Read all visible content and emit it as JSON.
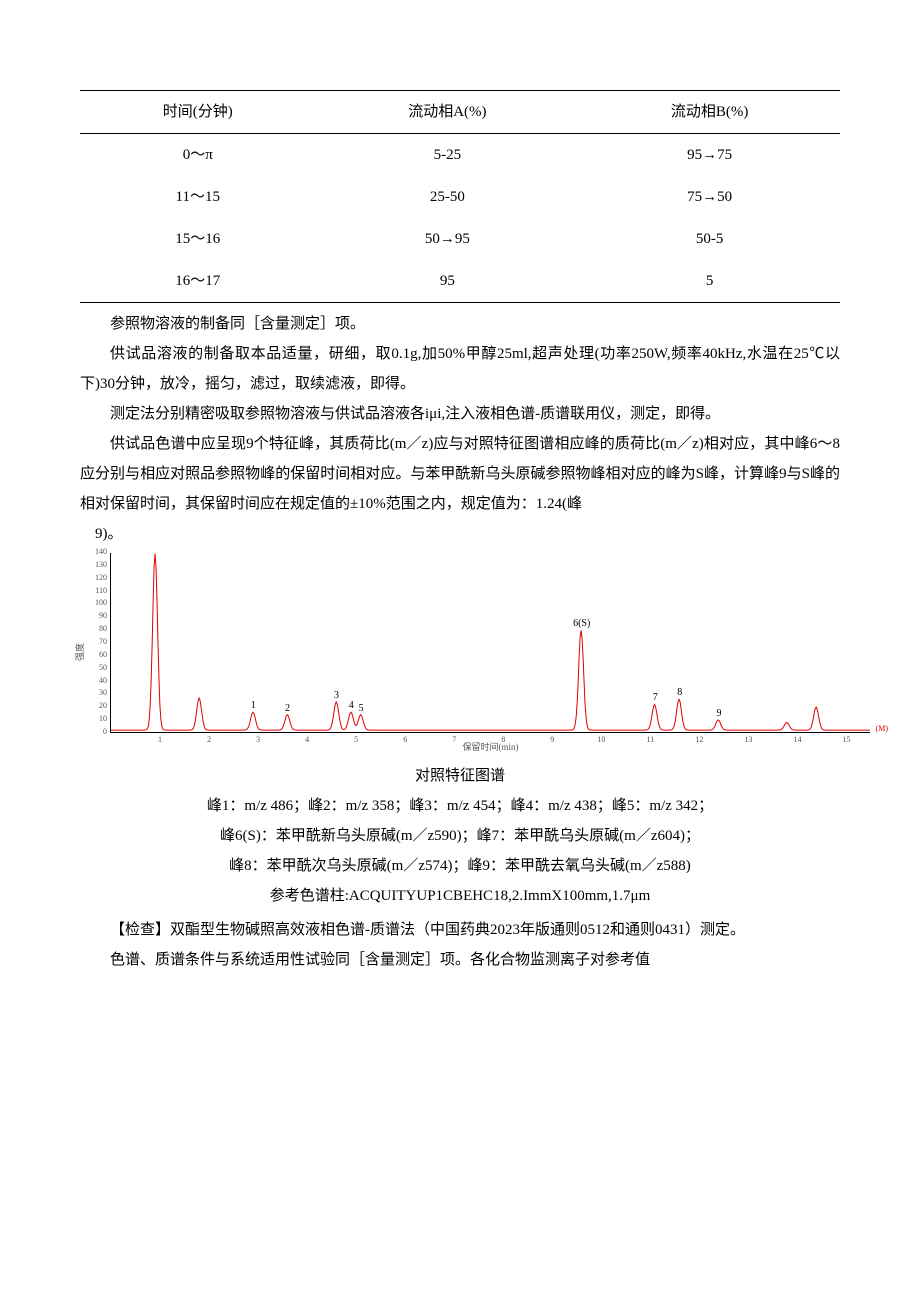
{
  "table": {
    "headers": [
      "时间(分钟)",
      "流动相A(%)",
      "流动相B(%)"
    ],
    "rows": [
      [
        "0～π",
        "5-25",
        "95→75"
      ],
      [
        "11～15",
        "25-50",
        "75→50"
      ],
      [
        "15～16",
        "50→95",
        "50-5"
      ],
      [
        "16～17",
        "95",
        "5"
      ]
    ]
  },
  "p1": "参照物溶液的制备同［含量测定］项。",
  "p2": "供试品溶液的制备取本品适量，研细，取0.1g,加50%甲醇25ml,超声处理(功率250W,频率40kHz,水温在25℃以下)30分钟，放冷，摇匀，滤过，取续滤液，即得。",
  "p3": "测定法分别精密吸取参照物溶液与供试品溶液各iμi,注入液相色谱-质谱联用仪，测定，即得。",
  "p4": "供试品色谱中应呈现9个特征峰，其质荷比(m／z)应与对照特征图谱相应峰的质荷比(m／z)相对应，其中峰6～8应分别与相应对照品参照物峰的保留时间相对应。与苯甲酰新乌头原碱参照物峰相对应的峰为S峰，计算峰9与S峰的相对保留时间，其保留时间应在规定值的±10%范围之内，规定值为：1.24(峰",
  "p5": "9)。",
  "chart": {
    "line_color": "#e00000",
    "y_ticks": [
      0,
      10,
      20,
      30,
      40,
      50,
      60,
      70,
      80,
      90,
      100,
      110,
      120,
      130,
      140
    ],
    "y_max": 140,
    "x_ticks": [
      1,
      2,
      3,
      4,
      5,
      6,
      7,
      8,
      9,
      10,
      11,
      12,
      13,
      14,
      15
    ],
    "x_max": 15.5,
    "y_label": "强度",
    "x_label": "保留时间(min)",
    "peaks": [
      {
        "x": 0.9,
        "h": 138
      },
      {
        "x": 1.8,
        "h": 25
      },
      {
        "x": 2.9,
        "h": 14,
        "label": "1"
      },
      {
        "x": 3.6,
        "h": 12,
        "label": "2"
      },
      {
        "x": 4.6,
        "h": 22,
        "label": "3"
      },
      {
        "x": 4.9,
        "h": 14,
        "label": "4"
      },
      {
        "x": 5.1,
        "h": 12,
        "label": "5"
      },
      {
        "x": 9.6,
        "h": 78,
        "label": "6(S)"
      },
      {
        "x": 11.1,
        "h": 20,
        "label": "7"
      },
      {
        "x": 11.6,
        "h": 24,
        "label": "8"
      },
      {
        "x": 12.4,
        "h": 8,
        "label": "9"
      },
      {
        "x": 13.8,
        "h": 6
      },
      {
        "x": 14.4,
        "h": 18
      }
    ],
    "axis_end": "(M)"
  },
  "caption": "对照特征图谱",
  "l1": "峰1：m/z 486；峰2：m/z 358；峰3：m/z 454；峰4：m/z 438；峰5：m/z 342；",
  "l2": "峰6(S)：苯甲酰新乌头原碱(m／z590)；峰7：苯甲酰乌头原碱(m／z604)；",
  "l3": "峰8：苯甲酰次乌头原碱(m／z574)；峰9：苯甲酰去氧乌头碱(m／z588)",
  "l4": "参考色谱柱:ACQUITYUP1CBEHC18,2.ImmX100mm,1.7μm",
  "p6": "【检查】双酯型生物碱照高效液相色谱-质谱法（中国药典2023年版通则0512和通则0431）测定。",
  "p7": "色谱、质谱条件与系统适用性试验同［含量测定］项。各化合物监测离子对参考值"
}
